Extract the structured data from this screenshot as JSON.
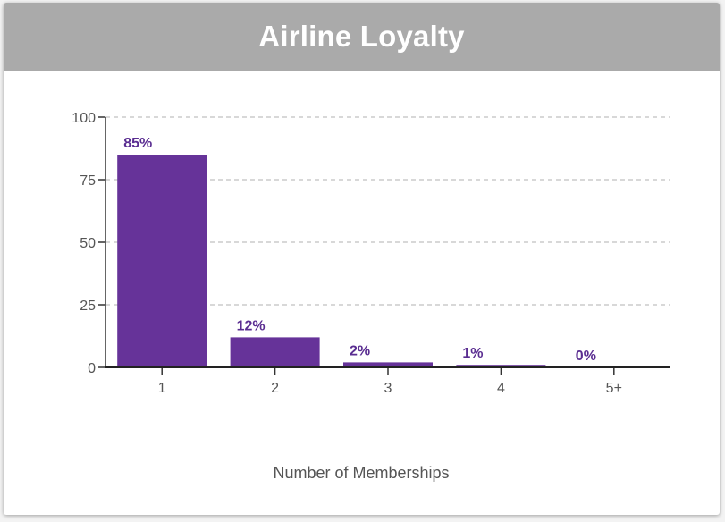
{
  "header": {
    "title": "Airline Loyalty"
  },
  "chart_data": {
    "type": "bar",
    "title": "Airline Loyalty",
    "categories": [
      "1",
      "2",
      "3",
      "4",
      "5+"
    ],
    "values": [
      85,
      12,
      2,
      1,
      0
    ],
    "data_labels": [
      "85%",
      "12%",
      "2%",
      "1%",
      "0%"
    ],
    "xlabel": "Number of Memberships",
    "ylabel": "",
    "ylim": [
      0,
      100
    ],
    "yticks": [
      0,
      25,
      50,
      75,
      100
    ],
    "grid": "horizontal-dashed",
    "legend": "none",
    "bar_color": "#663399",
    "label_color": "#5a2d91"
  }
}
